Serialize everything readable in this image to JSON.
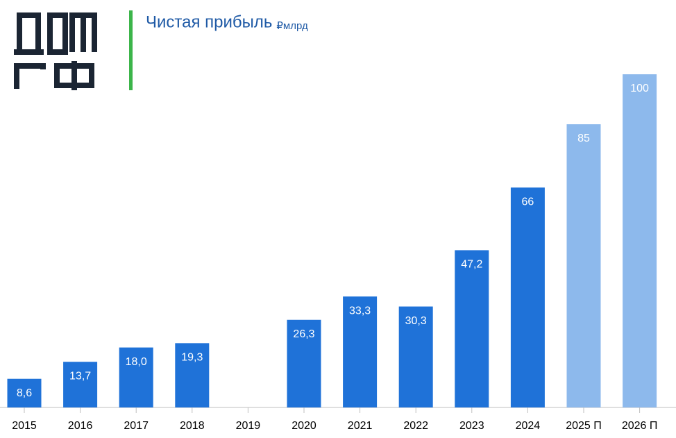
{
  "chart_data": {
    "type": "bar",
    "title": "Чистая прибыль",
    "subtitle": "₽млрд",
    "categories": [
      "2015",
      "2016",
      "2017",
      "2018",
      "2019",
      "2020",
      "2021",
      "2022",
      "2023",
      "2024",
      "2025 П",
      "2026 П"
    ],
    "values": [
      8.6,
      13.7,
      18.0,
      19.3,
      null,
      26.3,
      33.3,
      30.3,
      47.2,
      66,
      85,
      100
    ],
    "value_labels": [
      "8,6",
      "13,7",
      "18,0",
      "19,3",
      null,
      "26,3",
      "33,3",
      "30,3",
      "47,2",
      "66",
      "85",
      "100"
    ],
    "colors": [
      "#1f72d8",
      "#1f72d8",
      "#1f72d8",
      "#1f72d8",
      "#1f72d8",
      "#1f72d8",
      "#1f72d8",
      "#1f72d8",
      "#1f72d8",
      "#1f72d8",
      "#8db9ec",
      "#8db9ec"
    ]
  }
}
